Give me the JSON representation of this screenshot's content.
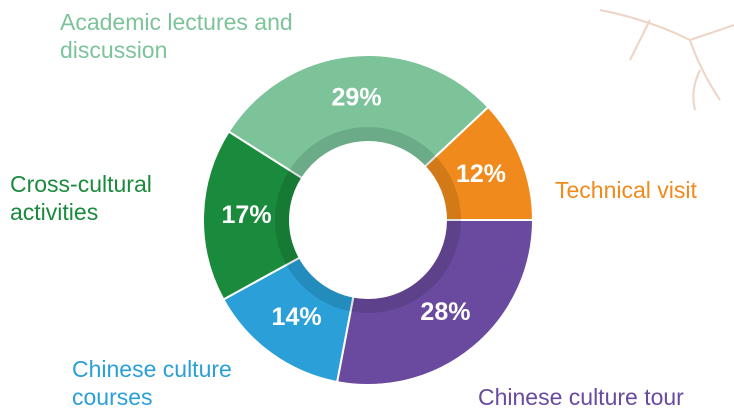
{
  "chart_data": {
    "type": "donut",
    "categories": [
      "Academic lectures and discussion",
      "Technical visit",
      "Chinese culture tour",
      "Chinese culture courses",
      "Cross-cultural activities"
    ],
    "values": [
      29,
      12,
      28,
      14,
      17
    ],
    "value_labels": [
      "29%",
      "12%",
      "28%",
      "14%",
      "17%"
    ],
    "colors": [
      "#7cc39a",
      "#f08a1c",
      "#6a4a9e",
      "#2a9fd8",
      "#1a8a3c"
    ]
  }
}
